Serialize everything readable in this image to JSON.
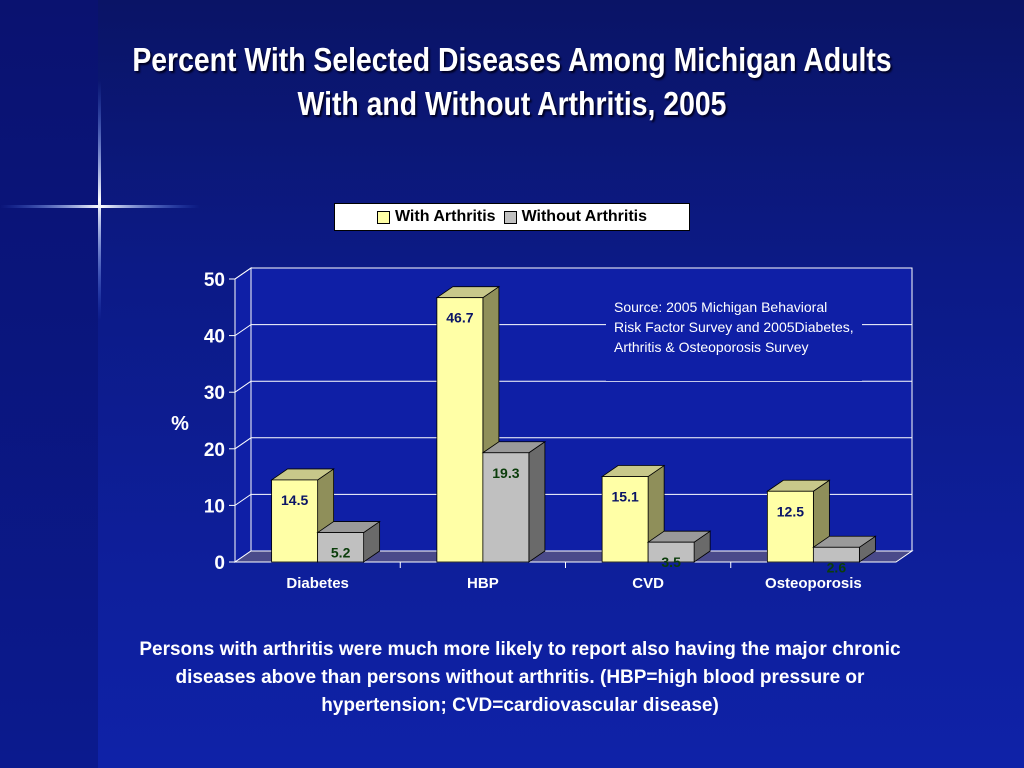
{
  "title_line1": "Percent With Selected Diseases Among Michigan Adults",
  "title_line2": "With and Without Arthritis, 2005",
  "source_note": "Source: 2005 Michigan Behavioral Risk Factor Survey and 2005Diabetes, Arthritis & Osteoporosis Survey",
  "footnote": "Persons with arthritis were much more likely to report also having the major chronic diseases above than persons without arthritis. (HBP=high blood pressure or hypertension; CVD=cardiovascular disease)",
  "colors": {
    "with_front": "#ffffa6",
    "with_side": "#8f8f5a",
    "with_top": "#c8c88a",
    "without_front": "#c0c0c0",
    "without_side": "#6a6a6a",
    "without_top": "#9a9a9a",
    "plot_bg": "#0f1fa6",
    "floor": "#4a4a8a"
  },
  "chart_data": {
    "type": "bar",
    "title": "",
    "xlabel": "",
    "ylabel": "%",
    "ylim": [
      0,
      50
    ],
    "yticks": [
      0,
      10,
      20,
      30,
      40,
      50
    ],
    "categories": [
      "Diabetes",
      "HBP",
      "CVD",
      "Osteoporosis"
    ],
    "series": [
      {
        "name": "With Arthritis",
        "values": [
          14.5,
          46.7,
          15.1,
          12.5
        ]
      },
      {
        "name": "Without Arthritis",
        "values": [
          5.2,
          19.3,
          3.5,
          2.6
        ]
      }
    ],
    "grid": true,
    "legend": "top"
  }
}
